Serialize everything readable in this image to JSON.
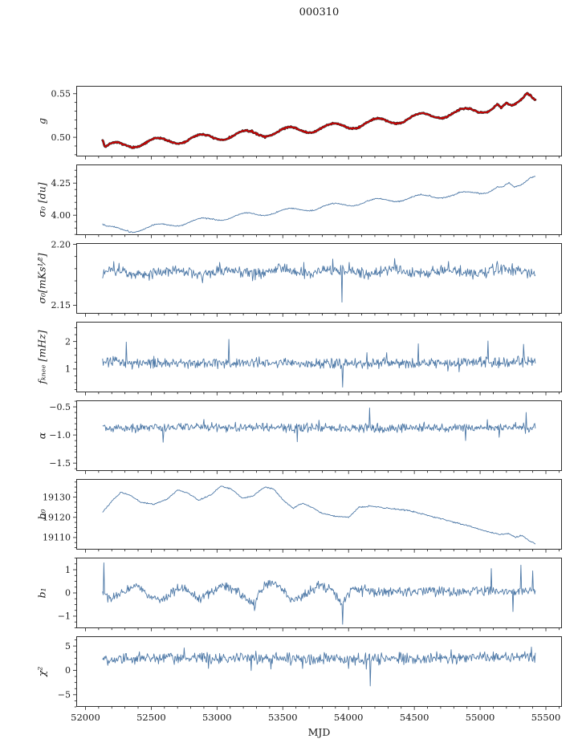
{
  "title": "000310",
  "xlabel": "MJD",
  "colors": {
    "line": "#4e79a7",
    "marker": "#d40000",
    "marker_edge": "#2a2a2a",
    "axis": "#1a1a1a"
  },
  "axis": {
    "x_range": [
      51930,
      55622
    ],
    "data_x_range": [
      52130,
      55420
    ],
    "samples": 658,
    "x_minor_step": 100,
    "x_ticks": [
      {
        "v": 52000,
        "label": "52000"
      },
      {
        "v": 52500,
        "label": "52500"
      },
      {
        "v": 53000,
        "label": "53000"
      },
      {
        "v": 53500,
        "label": "53500"
      },
      {
        "v": 54000,
        "label": "54000"
      },
      {
        "v": 54500,
        "label": "54500"
      },
      {
        "v": 55000,
        "label": "55000"
      },
      {
        "v": 55500,
        "label": "55500"
      }
    ]
  },
  "chart_data": [
    {
      "id": "g",
      "type": "line",
      "ylabel": "g",
      "ylim": [
        0.478,
        0.559
      ],
      "y_minor_step": 0.01,
      "yticks": [
        {
          "v": 0.5,
          "label": "0.50"
        },
        {
          "v": 0.55,
          "label": "0.55"
        }
      ],
      "series": [
        {
          "style": "marker",
          "seed": 7,
          "noise": 0.0007,
          "wave": {
            "amp": 0.0042,
            "period": 333,
            "phase": 0
          },
          "trend": [
            [
              52130,
              0.4975
            ],
            [
              52148,
              0.4872
            ],
            [
              52200,
              0.4895
            ],
            [
              52300,
              0.4915
            ],
            [
              52450,
              0.4938
            ],
            [
              52650,
              0.4962
            ],
            [
              52850,
              0.4988
            ],
            [
              53050,
              0.5012
            ],
            [
              53250,
              0.5038
            ],
            [
              53450,
              0.5062
            ],
            [
              53650,
              0.5088
            ],
            [
              53850,
              0.5112
            ],
            [
              54050,
              0.5145
            ],
            [
              54250,
              0.5178
            ],
            [
              54450,
              0.5215
            ],
            [
              54650,
              0.5252
            ],
            [
              54850,
              0.5285
            ],
            [
              55000,
              0.5312
            ],
            [
              55080,
              0.5345
            ],
            [
              55130,
              0.5378
            ],
            [
              55160,
              0.5315
            ],
            [
              55200,
              0.5352
            ],
            [
              55240,
              0.5328
            ],
            [
              55280,
              0.5382
            ],
            [
              55320,
              0.5462
            ],
            [
              55355,
              0.5545
            ],
            [
              55380,
              0.5525
            ],
            [
              55405,
              0.5478
            ],
            [
              55420,
              0.5462
            ]
          ],
          "spikes": []
        }
      ]
    },
    {
      "id": "sigma0-du",
      "type": "line",
      "ylabel": "σ₀ [du]",
      "ylim": [
        3.845,
        4.395
      ],
      "y_minor_step": 0.05,
      "yticks": [
        {
          "v": 4.0,
          "label": "4.00"
        },
        {
          "v": 4.25,
          "label": "4.25"
        }
      ],
      "series": [
        {
          "style": "line",
          "seed": 13,
          "noise": 0.0035,
          "wave": {
            "amp": 0.018,
            "period": 333,
            "phase": 0
          },
          "trend": [
            [
              52130,
              3.935
            ],
            [
              52160,
              3.905
            ],
            [
              52250,
              3.885
            ],
            [
              52350,
              3.882
            ],
            [
              52500,
              3.906
            ],
            [
              52700,
              3.934
            ],
            [
              52900,
              3.962
            ],
            [
              53100,
              3.986
            ],
            [
              53300,
              4.008
            ],
            [
              53500,
              4.03
            ],
            [
              53700,
              4.052
            ],
            [
              53900,
              4.075
            ],
            [
              54100,
              4.1
            ],
            [
              54300,
              4.118
            ],
            [
              54500,
              4.136
            ],
            [
              54700,
              4.152
            ],
            [
              54900,
              4.165
            ],
            [
              55050,
              4.19
            ],
            [
              55130,
              4.218
            ],
            [
              55170,
              4.205
            ],
            [
              55220,
              4.235
            ],
            [
              55260,
              4.21
            ],
            [
              55300,
              4.23
            ],
            [
              55340,
              4.27
            ],
            [
              55380,
              4.31
            ],
            [
              55420,
              4.315
            ]
          ],
          "spikes": []
        }
      ]
    },
    {
      "id": "sigma0-mks",
      "type": "line",
      "ylabel": "σ₀[mKs¹⁄²]",
      "ylim": [
        2.143,
        2.201
      ],
      "y_minor_step": 0.01,
      "yticks": [
        {
          "v": 2.15,
          "label": "2.15"
        },
        {
          "v": 2.2,
          "label": "2.20"
        }
      ],
      "series": [
        {
          "style": "line",
          "seed": 23,
          "noise": 0.0038,
          "wave": {
            "amp": 0.0018,
            "period": 420,
            "phase": 0
          },
          "trend": [
            [
              52130,
              2.1765
            ],
            [
              53000,
              2.1775
            ],
            [
              54000,
              2.1775
            ],
            [
              55000,
              2.178
            ],
            [
              55420,
              2.179
            ]
          ],
          "spikes": [
            [
              53950,
              2.1525
            ]
          ]
        }
      ]
    },
    {
      "id": "fknee",
      "type": "line",
      "ylabel": "fₖₙₑₑ [mHz]",
      "ylim": [
        0.15,
        2.72
      ],
      "y_minor_step": 0.25,
      "yticks": [
        {
          "v": 1,
          "label": "1"
        },
        {
          "v": 2,
          "label": "2"
        }
      ],
      "series": [
        {
          "style": "line",
          "seed": 31,
          "noise": 0.17,
          "wave": null,
          "trend": [
            [
              52130,
              1.26
            ],
            [
              53000,
              1.22
            ],
            [
              54000,
              1.19
            ],
            [
              54800,
              1.22
            ],
            [
              55420,
              1.26
            ]
          ],
          "spikes": [
            [
              52310,
              1.98
            ],
            [
              53090,
              2.08
            ],
            [
              53955,
              0.34
            ],
            [
              54530,
              1.92
            ],
            [
              55060,
              2.02
            ],
            [
              55330,
              1.9
            ]
          ]
        }
      ]
    },
    {
      "id": "alpha",
      "type": "line",
      "ylabel": "α",
      "ylim": [
        -1.64,
        -0.385
      ],
      "y_minor_step": 0.1,
      "yticks": [
        {
          "v": -1.5,
          "label": "−1.5"
        },
        {
          "v": -1.0,
          "label": "−1.0"
        },
        {
          "v": -0.5,
          "label": "−0.5"
        }
      ],
      "series": [
        {
          "style": "line",
          "seed": 41,
          "noise": 0.068,
          "wave": null,
          "trend": [
            [
              52130,
              -0.875
            ],
            [
              53000,
              -0.862
            ],
            [
              54000,
              -0.878
            ],
            [
              55000,
              -0.868
            ],
            [
              55420,
              -0.86
            ]
          ],
          "spikes": [
            [
              52590,
              -1.13
            ],
            [
              53610,
              -1.12
            ],
            [
              54160,
              -0.52
            ],
            [
              54890,
              -1.1
            ],
            [
              55350,
              -0.6
            ]
          ]
        }
      ]
    },
    {
      "id": "b0",
      "type": "line",
      "ylabel": "b₀",
      "ylim": [
        19104,
        19139
      ],
      "y_minor_step": 2.5,
      "yticks": [
        {
          "v": 19110,
          "label": "19110"
        },
        {
          "v": 19120,
          "label": "19120"
        },
        {
          "v": 19130,
          "label": "19130"
        }
      ],
      "series": [
        {
          "style": "line",
          "seed": 53,
          "noise": 0.25,
          "wave": null,
          "trend": [
            [
              52130,
              19122.5
            ],
            [
              52200,
              19128
            ],
            [
              52270,
              19132.5
            ],
            [
              52340,
              19131
            ],
            [
              52420,
              19127.5
            ],
            [
              52520,
              19126.5
            ],
            [
              52620,
              19129
            ],
            [
              52700,
              19133.5
            ],
            [
              52780,
              19132
            ],
            [
              52860,
              19128.5
            ],
            [
              52950,
              19131
            ],
            [
              53030,
              19135.5
            ],
            [
              53110,
              19134
            ],
            [
              53190,
              19129.5
            ],
            [
              53270,
              19130.5
            ],
            [
              53360,
              19135
            ],
            [
              53430,
              19134
            ],
            [
              53510,
              19128
            ],
            [
              53580,
              19124.5
            ],
            [
              53650,
              19127
            ],
            [
              53720,
              19125
            ],
            [
              53800,
              19122
            ],
            [
              53900,
              19120.5
            ],
            [
              54000,
              19120
            ],
            [
              54080,
              19125
            ],
            [
              54180,
              19125.5
            ],
            [
              54300,
              19124.5
            ],
            [
              54450,
              19123.5
            ],
            [
              54600,
              19121
            ],
            [
              54750,
              19118.5
            ],
            [
              54900,
              19116
            ],
            [
              55050,
              19113
            ],
            [
              55150,
              19111.5
            ],
            [
              55220,
              19112
            ],
            [
              55270,
              19110
            ],
            [
              55320,
              19111
            ],
            [
              55370,
              19108.5
            ],
            [
              55420,
              19107
            ]
          ],
          "spikes": []
        }
      ]
    },
    {
      "id": "b1",
      "type": "line",
      "ylabel": "b₁",
      "ylim": [
        -1.52,
        1.52
      ],
      "y_minor_step": 0.25,
      "yticks": [
        {
          "v": -1,
          "label": "−1"
        },
        {
          "v": 0,
          "label": "0"
        },
        {
          "v": 1,
          "label": "1"
        }
      ],
      "series": [
        {
          "style": "line",
          "seed": 61,
          "noise": 0.17,
          "wave": null,
          "trend": [
            [
              52130,
              0.0
            ],
            [
              52180,
              -0.25
            ],
            [
              52250,
              -0.1
            ],
            [
              52320,
              0.2
            ],
            [
              52400,
              0.25
            ],
            [
              52470,
              -0.1
            ],
            [
              52550,
              -0.3
            ],
            [
              52620,
              -0.2
            ],
            [
              52700,
              0.2
            ],
            [
              52780,
              0.1
            ],
            [
              52860,
              -0.25
            ],
            [
              52950,
              0.0
            ],
            [
              53030,
              0.3
            ],
            [
              53110,
              0.2
            ],
            [
              53200,
              -0.15
            ],
            [
              53290,
              -0.45
            ],
            [
              53340,
              0.25
            ],
            [
              53420,
              0.5
            ],
            [
              53480,
              0.25
            ],
            [
              53560,
              -0.3
            ],
            [
              53640,
              -0.15
            ],
            [
              53720,
              0.15
            ],
            [
              53800,
              0.3
            ],
            [
              53880,
              0.1
            ],
            [
              53950,
              -0.5
            ],
            [
              54020,
              0.1
            ],
            [
              54120,
              0.2
            ],
            [
              54220,
              0.0
            ],
            [
              54350,
              0.1
            ],
            [
              54500,
              0.05
            ],
            [
              54650,
              0.12
            ],
            [
              54800,
              0.05
            ],
            [
              54950,
              0.12
            ],
            [
              55100,
              0.05
            ],
            [
              55250,
              0.1
            ],
            [
              55420,
              0.08
            ]
          ],
          "spikes": [
            [
              52142,
              1.3
            ],
            [
              53955,
              -1.35
            ],
            [
              55085,
              1.05
            ],
            [
              55250,
              -0.8
            ],
            [
              55310,
              1.2
            ],
            [
              55400,
              0.95
            ]
          ]
        }
      ]
    },
    {
      "id": "chi2",
      "type": "line",
      "ylabel": "χ²",
      "ylim": [
        -7.5,
        7.0
      ],
      "y_minor_step": 1.25,
      "yticks": [
        {
          "v": -5,
          "label": "−5"
        },
        {
          "v": 0,
          "label": "0"
        },
        {
          "v": 5,
          "label": "5"
        }
      ],
      "series": [
        {
          "style": "line",
          "seed": 71,
          "noise": 1.0,
          "wave": null,
          "trend": [
            [
              52130,
              2.3
            ],
            [
              52700,
              2.5
            ],
            [
              53300,
              2.6
            ],
            [
              53900,
              2.4
            ],
            [
              54400,
              2.4
            ],
            [
              54900,
              2.6
            ],
            [
              55420,
              2.9
            ]
          ],
          "spikes": [
            [
              54165,
              -3.2
            ],
            [
              55390,
              4.8
            ]
          ]
        }
      ]
    }
  ]
}
